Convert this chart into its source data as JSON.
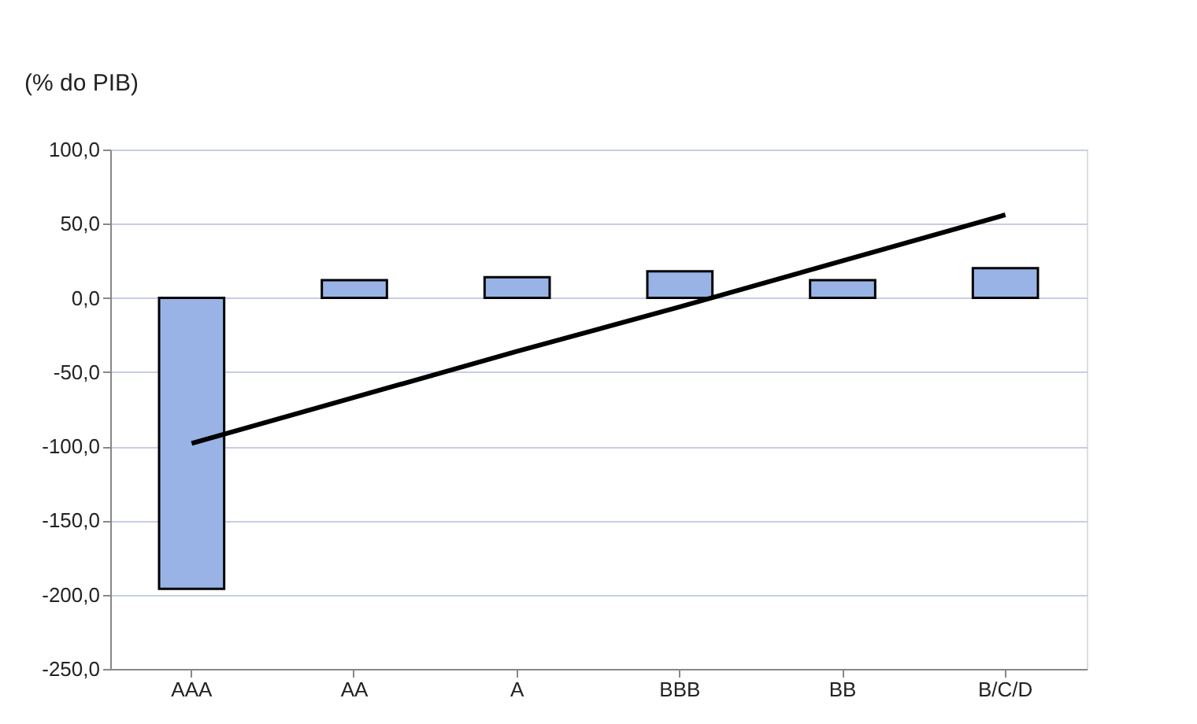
{
  "chart_data": {
    "type": "bar",
    "ylabel": "(% do PIB)",
    "categories": [
      "AAA",
      "AA",
      "A",
      "BBB",
      "BB",
      "B/C/D"
    ],
    "series": [
      {
        "color": "#99b3e6",
        "values": [
          -196,
          12,
          14,
          18,
          12,
          20
        ]
      },
      {
        "type": "line",
        "color": "#000000",
        "values": [
          -98,
          -67,
          -36,
          -6,
          25,
          56
        ]
      }
    ],
    "ylim": [
      -250,
      100
    ],
    "yticks": [
      {
        "value": -250,
        "label": "-250,0"
      },
      {
        "value": -200,
        "label": "-200,0"
      },
      {
        "value": -150,
        "label": "-150,0"
      },
      {
        "value": -100,
        "label": "-100,0"
      },
      {
        "value": -50,
        "label": "-50,0"
      },
      {
        "value": 0,
        "label": "0,0"
      },
      {
        "value": 50,
        "label": "50,0"
      },
      {
        "value": 100,
        "label": "100,0"
      }
    ],
    "grid": "y"
  }
}
